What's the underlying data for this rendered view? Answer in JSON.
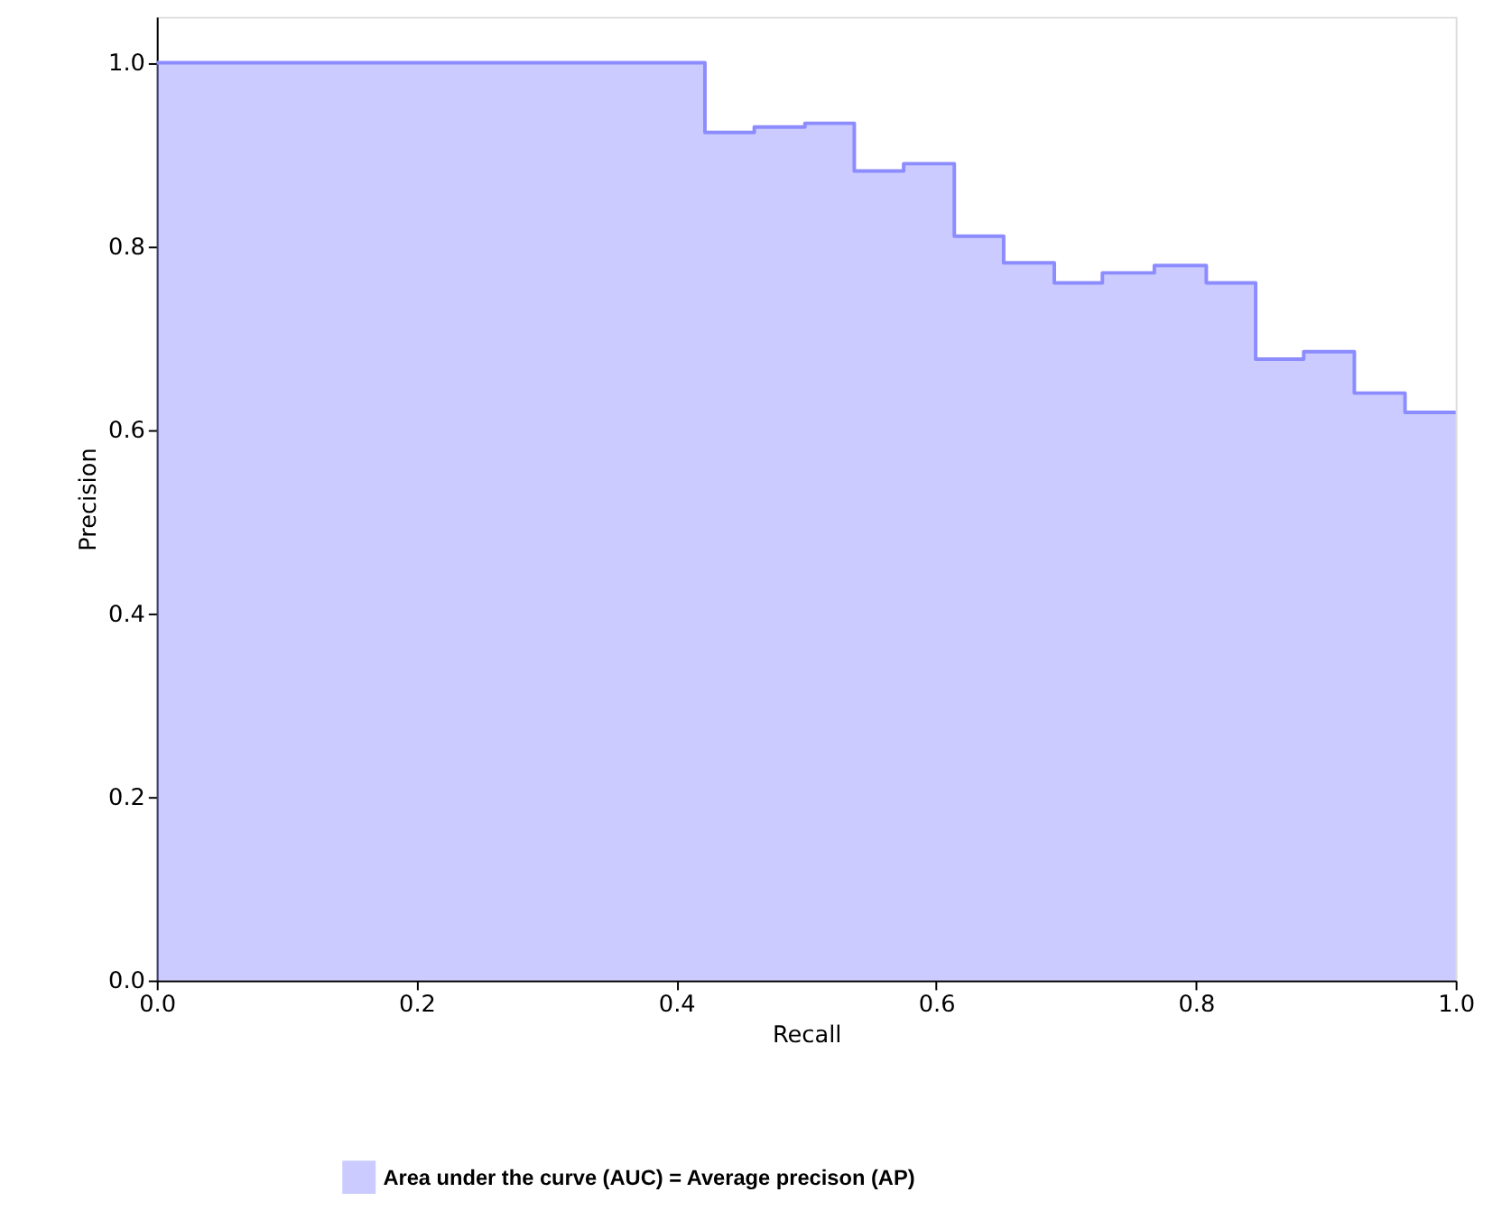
{
  "chart_data": {
    "type": "step",
    "xlabel": "Recall",
    "ylabel": "Precision",
    "x": [
      0,
      0.422,
      0.46,
      0.499,
      0.537,
      0.575,
      0.614,
      0.652,
      0.691,
      0.728,
      0.768,
      0.808,
      0.846,
      0.883,
      0.922,
      0.961,
      1.0
    ],
    "series": [
      {
        "name": "Area under the curve (AUC) = Average precison (AP)",
        "color": "#8c8cff",
        "values": [
          1.0,
          0.924,
          0.93,
          0.934,
          0.882,
          0.89,
          0.811,
          0.782,
          0.76,
          0.771,
          0.779,
          0.76,
          0.677,
          0.685,
          0.64,
          0.619,
          0.619
        ]
      }
    ],
    "xlim": [
      0,
      1
    ],
    "ylim": [
      0,
      1.05
    ],
    "xticks": [
      {
        "value": 0,
        "label": "0.0"
      },
      0.2,
      0.4,
      0.6,
      0.8,
      {
        "value": 1,
        "label": "1.0"
      }
    ],
    "yticks": [
      {
        "value": 0,
        "label": "0.0"
      },
      0.2,
      0.4,
      0.6,
      0.8,
      {
        "value": 1,
        "label": "1.0"
      }
    ],
    "grid": false,
    "legend": "bottom"
  }
}
